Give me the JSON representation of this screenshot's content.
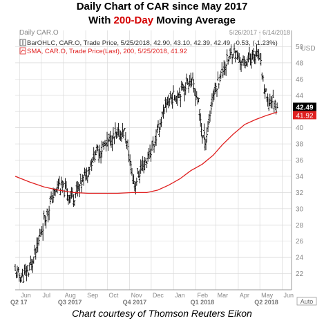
{
  "header": {
    "title_line1": "Daily Chart of CAR since May 2017",
    "title_line2_prefix": "With ",
    "title_line2_highlight": "200-Day",
    "title_line2_suffix": " Moving Average",
    "highlight_color": "#d40000"
  },
  "panel": {
    "name": "Daily CAR.O",
    "date_range": "5/26/2017 - 6/14/2018",
    "currency": "USD",
    "corner_label": "Auto"
  },
  "legend": {
    "bar_entry": "BarOHLC, CAR.O, Trade Price, 5/25/2018, 42.90, 43.10, 42.39, 42.49, -0.53, (-1.23%)",
    "sma_entry": "SMA, CAR.O, Trade Price(Last), 200, 5/25/2018, 41.92",
    "bar_icon": "candlestick-icon",
    "sma_icon": "line-icon"
  },
  "price_tags": {
    "last": "42.49",
    "sma": "41.92"
  },
  "caption": "Chart courtesy of Thomson Reuters Eikon",
  "colors": {
    "price_bars": "#000000",
    "sma_line": "#e02020",
    "last_tag_bg": "#000000",
    "sma_tag_bg": "#e02020",
    "grid": "#d9d9d9",
    "axis_text": "#888888",
    "plot_bg": "#ffffff"
  },
  "chart_data": {
    "type": "line",
    "title": "Daily Chart of CAR since May 2017 With 200-Day Moving Average",
    "y_range": [
      20,
      52
    ],
    "y_ticks": [
      22,
      24,
      26,
      28,
      30,
      32,
      34,
      36,
      38,
      40,
      42,
      44,
      46,
      48,
      50
    ],
    "y_axis_side": "right",
    "grid": true,
    "legend_placement": "top-left",
    "month_ticks": [
      "Jun",
      "Jul",
      "Aug",
      "Sep",
      "Oct",
      "Nov",
      "Dec",
      "Jan",
      "Feb",
      "Mar",
      "Apr",
      "May",
      "Jun"
    ],
    "quarter_ticks": [
      "Q2 17",
      "Q3 2017",
      "Q4 2017",
      "Q1 2018",
      "Q2 2018"
    ],
    "series": [
      {
        "name": "CAR.O Trade Price",
        "kind": "ohlc",
        "points": [
          [
            "2017-05-26",
            22.2
          ],
          [
            "2017-06-05",
            21.5
          ],
          [
            "2017-06-15",
            22.5
          ],
          [
            "2017-06-25",
            25.0
          ],
          [
            "2017-07-05",
            28.5
          ],
          [
            "2017-07-15",
            31.0
          ],
          [
            "2017-07-25",
            33.0
          ],
          [
            "2017-08-05",
            32.0
          ],
          [
            "2017-08-15",
            31.5
          ],
          [
            "2017-08-25",
            33.0
          ],
          [
            "2017-09-05",
            35.0
          ],
          [
            "2017-09-15",
            37.0
          ],
          [
            "2017-09-25",
            37.5
          ],
          [
            "2017-10-05",
            38.5
          ],
          [
            "2017-10-15",
            39.0
          ],
          [
            "2017-10-25",
            39.5
          ],
          [
            "2017-11-03",
            35.0
          ],
          [
            "2017-11-08",
            33.0
          ],
          [
            "2017-11-15",
            34.5
          ],
          [
            "2017-11-25",
            36.0
          ],
          [
            "2017-12-05",
            38.0
          ],
          [
            "2017-12-15",
            41.0
          ],
          [
            "2017-12-25",
            43.5
          ],
          [
            "2018-01-05",
            44.0
          ],
          [
            "2018-01-15",
            45.0
          ],
          [
            "2018-01-25",
            46.0
          ],
          [
            "2018-02-05",
            43.0
          ],
          [
            "2018-02-10",
            39.0
          ],
          [
            "2018-02-15",
            38.5
          ],
          [
            "2018-02-25",
            44.0
          ],
          [
            "2018-03-05",
            46.0
          ],
          [
            "2018-03-15",
            48.0
          ],
          [
            "2018-03-25",
            49.5
          ],
          [
            "2018-04-05",
            48.0
          ],
          [
            "2018-04-15",
            48.5
          ],
          [
            "2018-04-25",
            49.0
          ],
          [
            "2018-05-01",
            48.5
          ],
          [
            "2018-05-07",
            45.0
          ],
          [
            "2018-05-12",
            43.0
          ],
          [
            "2018-05-18",
            43.5
          ],
          [
            "2018-05-25",
            42.49
          ]
        ]
      },
      {
        "name": "SMA 200",
        "kind": "line",
        "points": [
          [
            "2017-05-26",
            34.0
          ],
          [
            "2017-06-15",
            33.3
          ],
          [
            "2017-07-05",
            32.7
          ],
          [
            "2017-07-25",
            32.3
          ],
          [
            "2017-08-15",
            32.0
          ],
          [
            "2017-09-05",
            31.9
          ],
          [
            "2017-09-25",
            31.9
          ],
          [
            "2017-10-15",
            31.9
          ],
          [
            "2017-11-05",
            32.0
          ],
          [
            "2017-11-25",
            32.0
          ],
          [
            "2017-12-10",
            32.3
          ],
          [
            "2017-12-25",
            32.9
          ],
          [
            "2018-01-10",
            33.7
          ],
          [
            "2018-01-25",
            34.7
          ],
          [
            "2018-02-10",
            35.5
          ],
          [
            "2018-02-25",
            36.6
          ],
          [
            "2018-03-10",
            37.9
          ],
          [
            "2018-03-25",
            39.2
          ],
          [
            "2018-04-10",
            40.4
          ],
          [
            "2018-04-25",
            41.0
          ],
          [
            "2018-05-10",
            41.5
          ],
          [
            "2018-05-25",
            41.92
          ]
        ]
      }
    ]
  }
}
